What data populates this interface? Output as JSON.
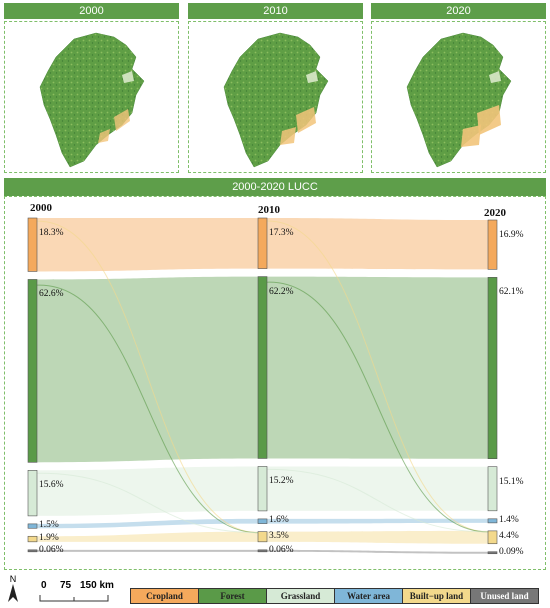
{
  "maps": {
    "titles": [
      "2000",
      "2010",
      "2020"
    ]
  },
  "sankey": {
    "title": "2000-2020 LUCC",
    "years": [
      "2000",
      "2010",
      "2020"
    ],
    "categories": [
      "Cropland",
      "Forest",
      "Grassland",
      "Water area",
      "Built−up land",
      "Unused land"
    ],
    "colors": [
      "#f4a95c",
      "#5a9a48",
      "#d6ead6",
      "#7fb6d8",
      "#f3d98c",
      "#777777"
    ],
    "values": {
      "2000": [
        18.3,
        62.6,
        15.6,
        1.5,
        1.9,
        0.06
      ],
      "2010": [
        17.3,
        62.2,
        15.2,
        1.6,
        3.5,
        0.06
      ],
      "2020": [
        16.9,
        62.1,
        15.1,
        1.4,
        4.4,
        0.09
      ]
    },
    "labels": {
      "2000": [
        "18.3%",
        "62.6%",
        "15.6%",
        "1.5%",
        "1.9%",
        "0.06%"
      ],
      "2010": [
        "17.3%",
        "62.2%",
        "15.2%",
        "1.6%",
        "3.5%",
        "0.06%"
      ],
      "2020": [
        "16.9%",
        "62.1%",
        "15.1%",
        "1.4%",
        "4.4%",
        "0.09%"
      ]
    }
  },
  "scalebar": {
    "north": "N",
    "ticks": [
      "0",
      "75",
      "150 km"
    ]
  },
  "legend": {
    "items": [
      "Cropland",
      "Forest",
      "Grassland",
      "Water area",
      "Built−up land",
      "Unused land"
    ]
  }
}
